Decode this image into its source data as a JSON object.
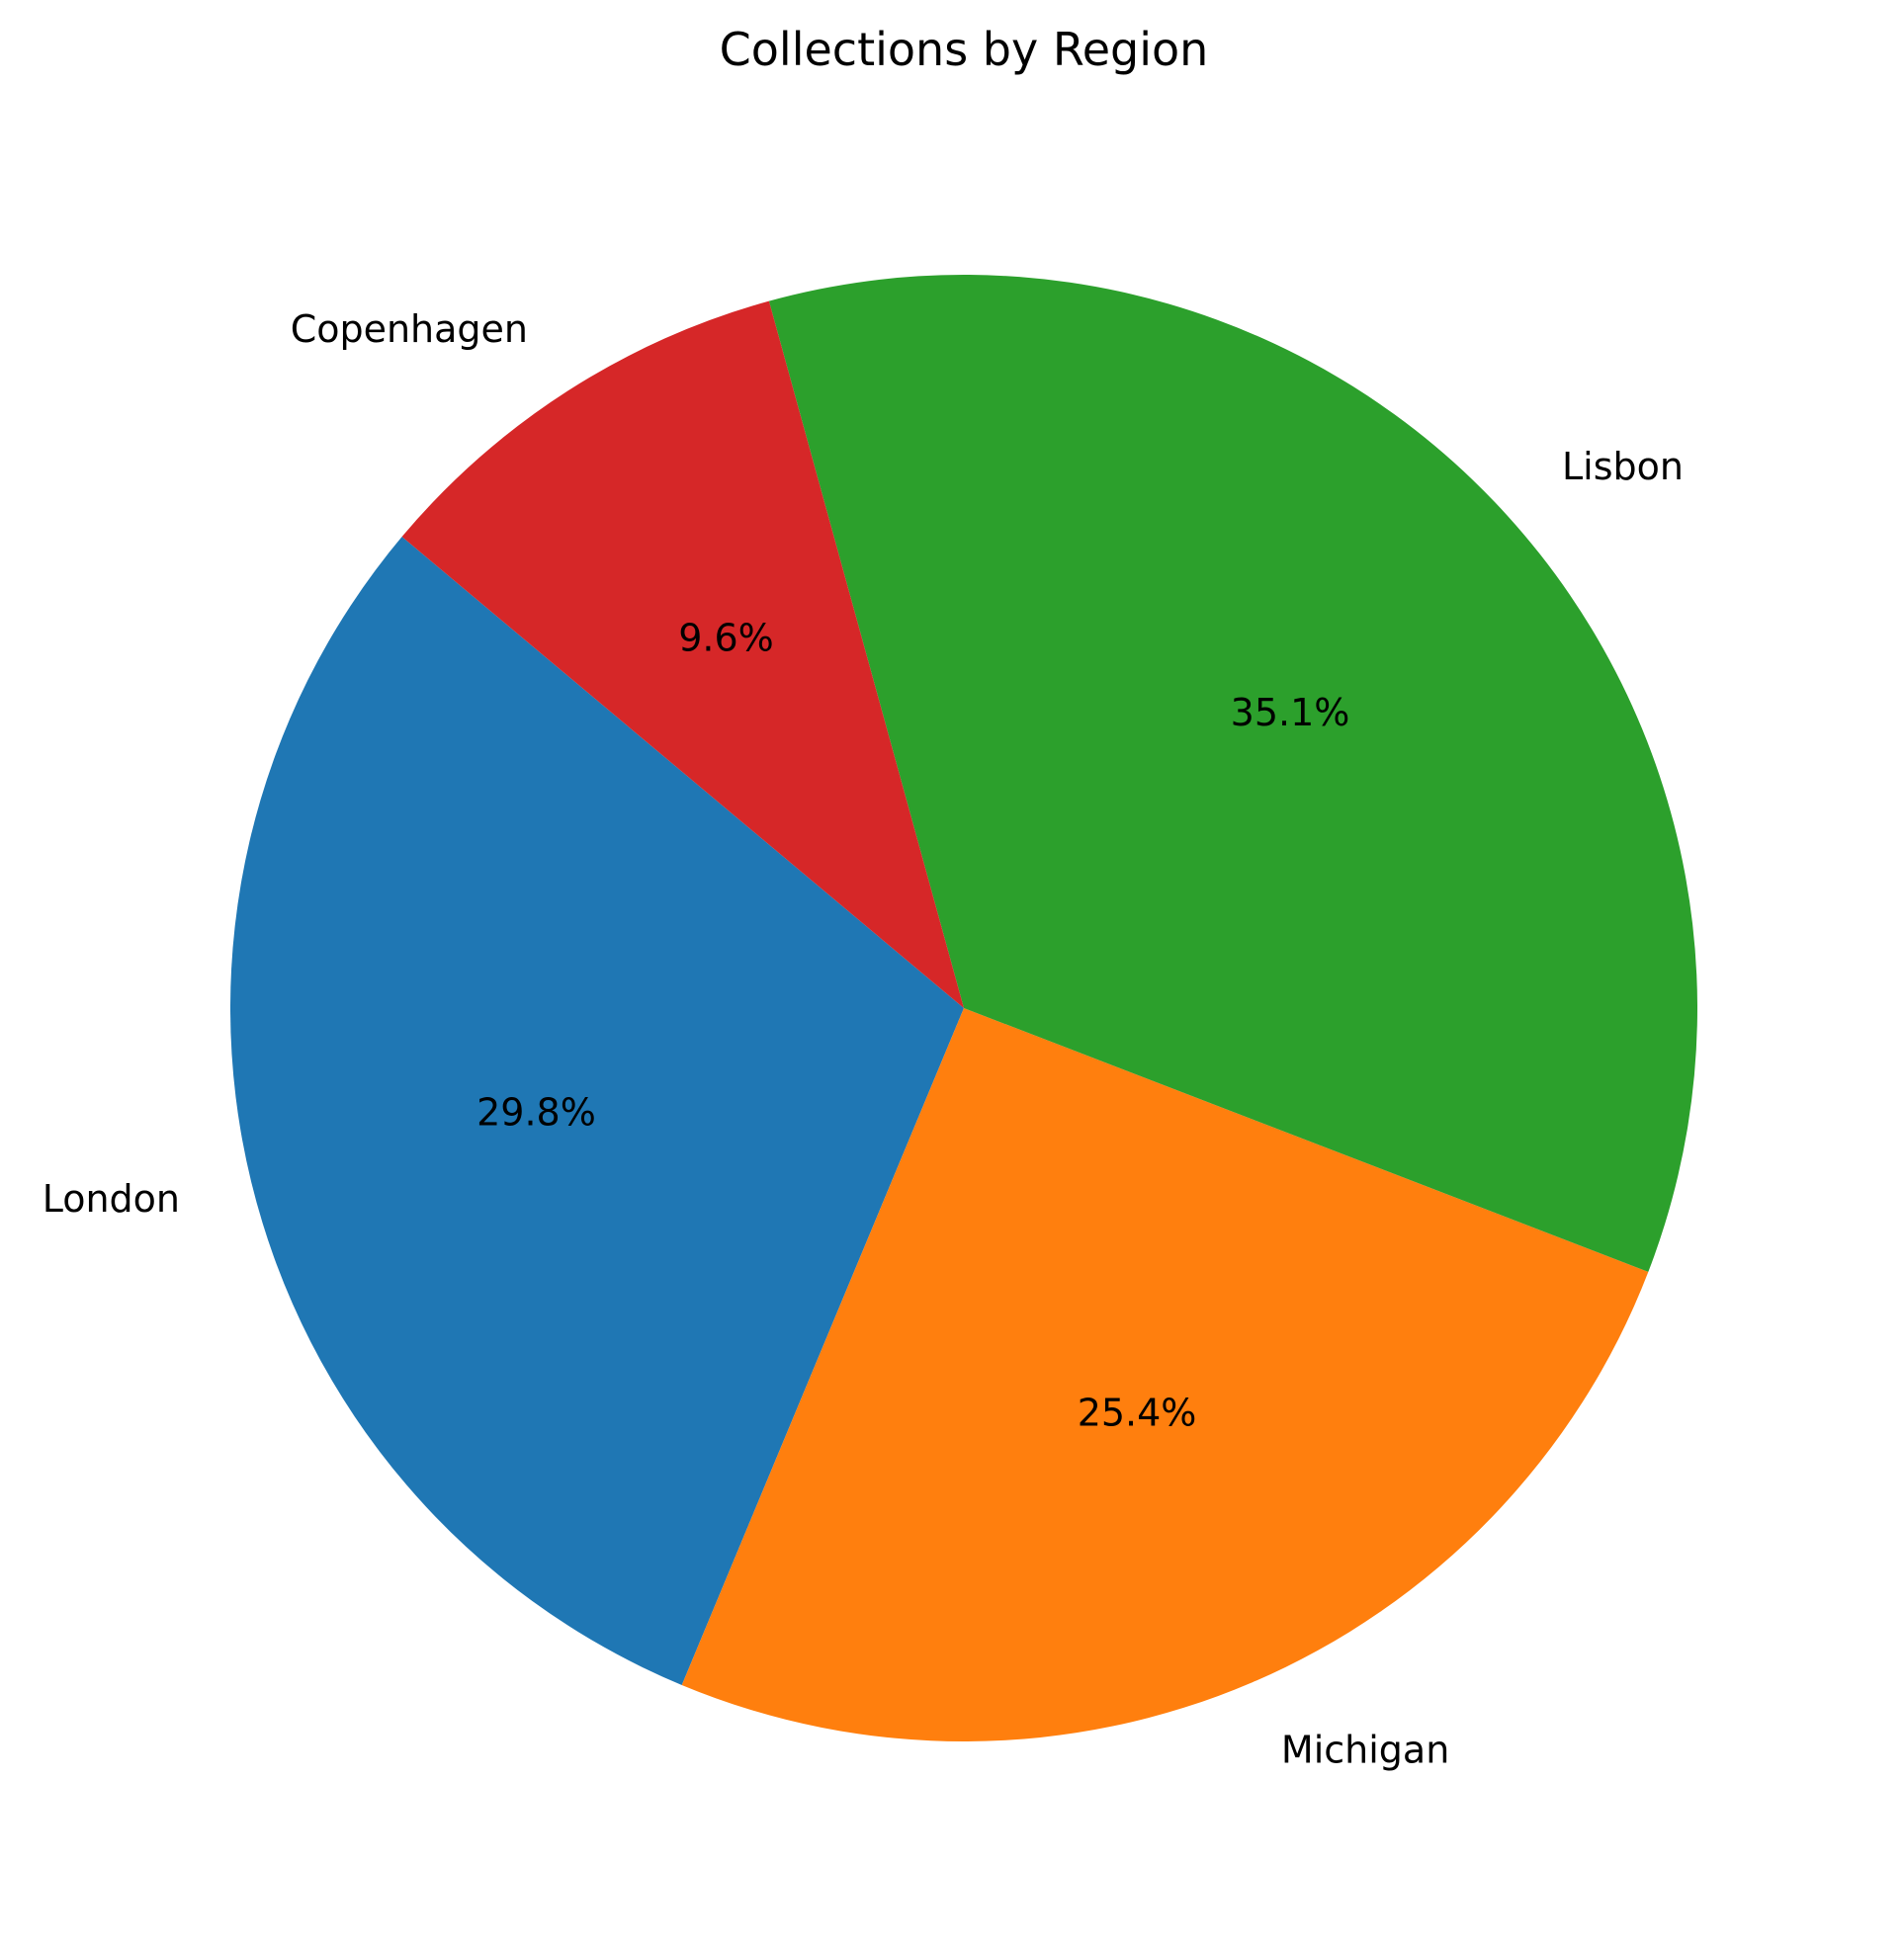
{
  "chart_data": {
    "type": "pie",
    "title": "Collections by Region",
    "labels": [
      "London",
      "Michigan",
      "Lisbon",
      "Copenhagen"
    ],
    "values": [
      29.8,
      25.4,
      35.1,
      9.6
    ],
    "percent_labels": [
      "29.8%",
      "25.4%",
      "35.1%",
      "9.6%"
    ],
    "colors": [
      "#1f77b4",
      "#ff7f0e",
      "#2ca02c",
      "#d62728"
    ],
    "start_angle_deg": 140,
    "direction": "counterclockwise",
    "legend": "none"
  }
}
